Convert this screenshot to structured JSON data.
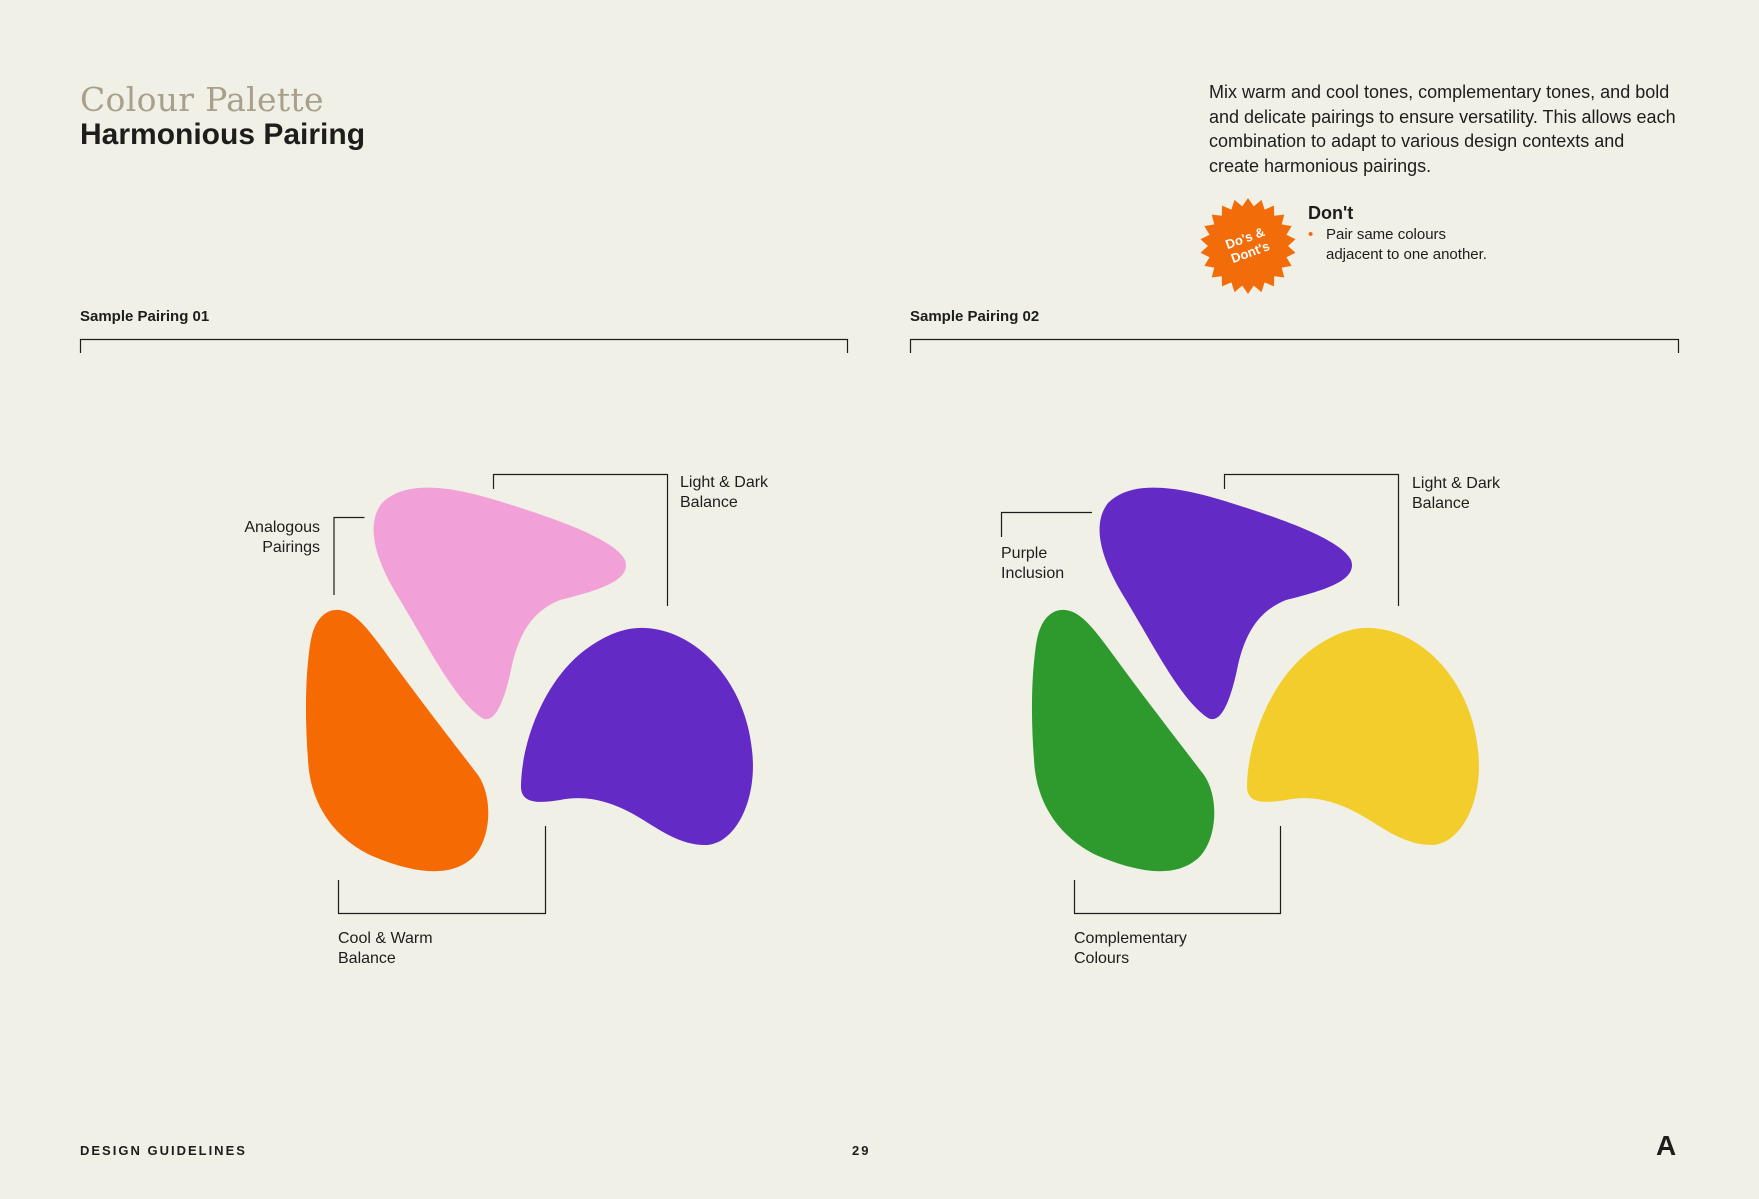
{
  "header": {
    "section_title": "Colour Palette",
    "page_title": "Harmonious Pairing"
  },
  "intro": {
    "text": "Mix warm and cool tones, complementary tones, and bold and delicate pairings to ensure versatility. This allows each combination to adapt to various design contexts and create harmonious pairings."
  },
  "dos_donts": {
    "badge_line1": "Do's &",
    "badge_line2": "Dont's",
    "title": "Don't",
    "item_line1": "Pair same colours",
    "item_line2": "adjacent to one another.",
    "badge_color": "#f36c0a"
  },
  "pairing_01": {
    "label": "Sample Pairing 01",
    "callouts": {
      "analogous_line1": "Analogous",
      "analogous_line2": "Pairings",
      "light_dark_line1": "Light & Dark",
      "light_dark_line2": "Balance",
      "cool_warm_line1": "Cool & Warm",
      "cool_warm_line2": "Balance"
    },
    "colors": {
      "top": "#f1a0d8",
      "left": "#f66a04",
      "right": "#642ac6"
    }
  },
  "pairing_02": {
    "label": "Sample Pairing 02",
    "callouts": {
      "purple_line1": "Purple",
      "purple_line2": "Inclusion",
      "light_dark_line1": "Light & Dark",
      "light_dark_line2": "Balance",
      "complementary_line1": "Complementary",
      "complementary_line2": "Colours"
    },
    "colors": {
      "top": "#642ac6",
      "left": "#2e9a2e",
      "right": "#f2cd2c"
    }
  },
  "footer": {
    "left": "DESIGN GUIDELINES",
    "page_number": "29",
    "logo": "A"
  }
}
